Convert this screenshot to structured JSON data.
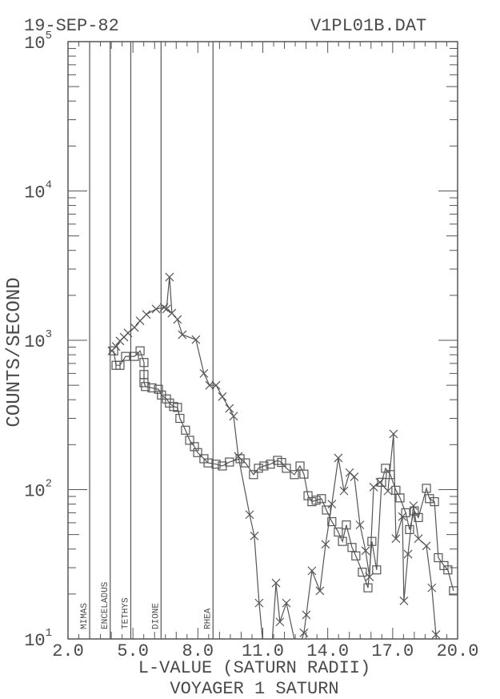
{
  "header": {
    "date": "19-SEP-82",
    "file": "V1PL01B.DAT"
  },
  "chart_data": {
    "type": "line",
    "title": "",
    "subtitle": "VOYAGER 1 SATURN",
    "xlabel": "L-VALUE (SATURN RADII)",
    "ylabel": "COUNTS/SECOND",
    "xlim": [
      2.0,
      20.0
    ],
    "ylim": [
      10,
      100000
    ],
    "yscale": "log",
    "grid": false,
    "x_ticks": [
      "2.0",
      "5.0",
      "8.0",
      "11.0",
      "14.0",
      "17.0",
      "20.0"
    ],
    "y_ticks": [
      {
        "base": "10",
        "exp": "1"
      },
      {
        "base": "10",
        "exp": "2"
      },
      {
        "base": "10",
        "exp": "3"
      },
      {
        "base": "10",
        "exp": "4"
      },
      {
        "base": "10",
        "exp": "5"
      }
    ],
    "line_color": "#555555",
    "reference_lines": [
      {
        "label": "MIMAS",
        "x": 3.0
      },
      {
        "label": "ENCELADUS",
        "x": 3.95
      },
      {
        "label": "TETHYS",
        "x": 4.9
      },
      {
        "label": "DIONE",
        "x": 6.3
      },
      {
        "label": "RHEA",
        "x": 8.7
      }
    ],
    "series": [
      {
        "marker": "cross",
        "x": [
          4.03,
          4.22,
          4.4,
          4.59,
          4.77,
          5.07,
          5.33,
          5.62,
          6.07,
          6.44,
          6.55,
          6.69,
          6.8,
          7.06,
          7.28,
          7.91,
          8.28,
          8.54,
          8.84,
          9.13,
          9.46,
          9.65,
          9.87,
          10.39,
          10.61,
          10.83,
          11.05,
          11.4,
          11.61,
          11.79,
          12.09,
          12.6,
          12.9,
          13.01,
          13.27,
          13.64,
          13.9,
          14.19,
          14.49,
          14.75,
          15.01,
          15.23,
          15.49,
          15.75,
          15.93,
          16.12,
          16.41,
          16.78,
          17.04,
          17.15,
          17.45,
          17.52,
          17.71,
          17.96,
          18.19,
          18.56,
          18.81,
          19.0,
          19.1
        ],
        "y": [
          850,
          910,
          990,
          1050,
          1120,
          1220,
          1350,
          1490,
          1620,
          1660,
          1620,
          2650,
          1520,
          1380,
          1090,
          1010,
          600,
          500,
          500,
          420,
          350,
          310,
          167,
          68,
          49,
          17.4,
          8,
          8,
          23.7,
          13,
          17.4,
          8,
          11,
          14.5,
          28.6,
          21,
          43,
          80,
          163,
          98,
          130,
          122,
          58,
          39,
          26,
          104,
          112,
          98,
          236,
          47,
          66,
          18,
          37,
          78,
          47,
          42,
          22,
          10.7,
          8
        ]
      },
      {
        "marker": "square",
        "x": [
          4.11,
          4.22,
          4.4,
          4.66,
          5.07,
          5.33,
          5.51,
          5.51,
          5.51,
          5.58,
          5.88,
          6.18,
          6.32,
          6.55,
          6.69,
          6.88,
          7.06,
          7.17,
          7.43,
          7.62,
          7.84,
          7.99,
          8.28,
          8.47,
          8.84,
          9.13,
          9.46,
          9.95,
          10.2,
          10.57,
          10.8,
          11.05,
          11.35,
          11.68,
          11.87,
          12.09,
          12.46,
          12.72,
          12.9,
          13.09,
          13.27,
          13.46,
          13.71,
          13.94,
          14.19,
          14.49,
          14.68,
          14.86,
          15.12,
          15.3,
          15.6,
          15.86,
          16.04,
          16.26,
          16.49,
          16.67,
          16.89,
          17.15,
          17.34,
          17.6,
          17.78,
          18.0,
          18.19,
          18.56,
          18.7,
          18.93,
          19.11,
          19.37,
          19.55,
          19.81
        ],
        "y": [
          850,
          680,
          680,
          780,
          780,
          850,
          710,
          590,
          520,
          490,
          480,
          470,
          430,
          405,
          380,
          360,
          355,
          300,
          250,
          214,
          194,
          177,
          161,
          151,
          148,
          144,
          153,
          161,
          151,
          126,
          139,
          144,
          148,
          157,
          152,
          139,
          126,
          144,
          127,
          91,
          83,
          85,
          87,
          73,
          61,
          52,
          45,
          58,
          41,
          36,
          28,
          22,
          45,
          29,
          112,
          139,
          126,
          99,
          88,
          70,
          54,
          72,
          65,
          102,
          87,
          83,
          35,
          31,
          29,
          21
        ]
      }
    ]
  }
}
